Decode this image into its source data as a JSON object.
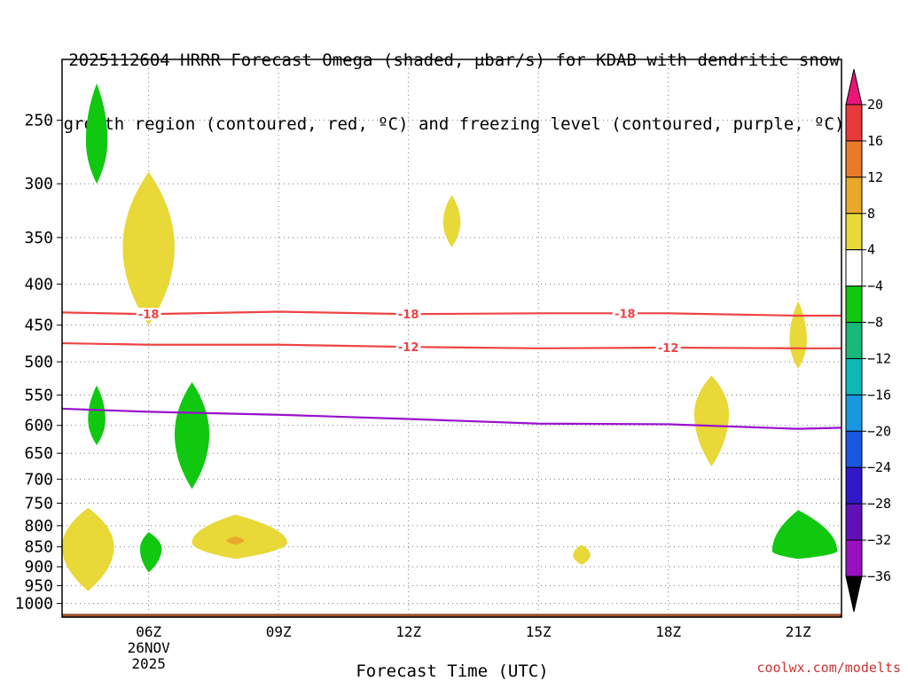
{
  "title_line1": "2025112604 HRRR Forecast Omega (shaded, μbar/s) for KDAB with dendritic snow",
  "title_line2": "growth region (contoured, red, ºC) and freezing level (contoured, purple, ºC)",
  "credit": "coolwx.com/modelts",
  "chart_data": {
    "type": "heatmap",
    "title": "2025112604 HRRR Forecast Omega (shaded, μbar/s) for KDAB with dendritic snow growth region (contoured, red, ºC) and freezing level (contoured, purple, ºC)",
    "xlabel": "Forecast Time (UTC)",
    "ylabel": "",
    "x_range_hours_utc": [
      4.0,
      22.0
    ],
    "y_range_mb": [
      1040,
      210
    ],
    "y_ticks": [
      250,
      300,
      350,
      400,
      450,
      500,
      550,
      600,
      650,
      700,
      750,
      800,
      850,
      900,
      950,
      1000
    ],
    "x_ticks": [
      {
        "hour": 6,
        "label": "06Z",
        "sub1": "26NOV",
        "sub2": "2025"
      },
      {
        "hour": 9,
        "label": "09Z"
      },
      {
        "hour": 12,
        "label": "12Z"
      },
      {
        "hour": 15,
        "label": "15Z"
      },
      {
        "hour": 18,
        "label": "18Z"
      },
      {
        "hour": 21,
        "label": "21Z"
      }
    ],
    "grid": true,
    "colorbar": {
      "levels": [
        20,
        16,
        12,
        8,
        4,
        -4,
        -8,
        -12,
        -16,
        -20,
        -24,
        -28,
        -32,
        -36
      ],
      "colors": [
        "#e8147a",
        "#e83a3a",
        "#e87a28",
        "#e8a82a",
        "#e8d838",
        "#ffffff",
        "#10c810",
        "#18b878",
        "#10b8b8",
        "#1898e0",
        "#1858e0",
        "#3018c8",
        "#6010b8",
        "#9810c0",
        "#a0a0a0",
        "#000000"
      ]
    },
    "omega_regions": [
      {
        "label": "green",
        "value": -6,
        "t": [
          4.8,
          5.05,
          4.55
        ],
        "p": [
          225,
          265,
          300
        ]
      },
      {
        "label": "yellow",
        "value": 6,
        "t": [
          6.0,
          6.6,
          5.4
        ],
        "p": [
          290,
          360,
          450
        ]
      },
      {
        "label": "yellow",
        "value": 6,
        "t": [
          13.0,
          13.2,
          12.8
        ],
        "p": [
          310,
          335,
          360
        ]
      },
      {
        "label": "yellow",
        "value": 6,
        "t": [
          21.0,
          21.2,
          20.8
        ],
        "p": [
          420,
          470,
          510
        ]
      },
      {
        "label": "green",
        "value": -6,
        "t": [
          4.8,
          5.0,
          4.6
        ],
        "p": [
          535,
          590,
          635
        ]
      },
      {
        "label": "green",
        "value": -6,
        "t": [
          7.0,
          7.4,
          6.6
        ],
        "p": [
          530,
          615,
          720
        ]
      },
      {
        "label": "yellow",
        "value": 6,
        "t": [
          19.0,
          19.4,
          18.6
        ],
        "p": [
          520,
          580,
          675
        ]
      },
      {
        "label": "yellow",
        "value": 6,
        "t": [
          4.6,
          5.2,
          4.0
        ],
        "p": [
          760,
          850,
          965
        ]
      },
      {
        "label": "green",
        "value": -6,
        "t": [
          6.0,
          6.3,
          5.8
        ],
        "p": [
          815,
          855,
          915
        ]
      },
      {
        "label": "yellow",
        "value": 6,
        "t": [
          8.0,
          9.2,
          7.0
        ],
        "p": [
          775,
          840,
          880
        ]
      },
      {
        "label": "orange",
        "value": 10,
        "t": [
          8.0,
          8.2,
          7.8
        ],
        "p": [
          825,
          835,
          845
        ]
      },
      {
        "label": "yellow",
        "value": 6,
        "t": [
          16.0,
          16.2,
          15.8
        ],
        "p": [
          845,
          870,
          895
        ]
      },
      {
        "label": "green",
        "value": -6,
        "t": [
          21.0,
          21.9,
          20.4
        ],
        "p": [
          765,
          860,
          880
        ]
      }
    ],
    "contours": [
      {
        "name": "-18",
        "color": "#ee4444",
        "labels_at": [
          6,
          12,
          17
        ],
        "t": [
          4.0,
          6,
          9,
          12,
          15,
          18,
          21,
          22.0
        ],
        "p": [
          434,
          436,
          433,
          436,
          435,
          435,
          438,
          438
        ]
      },
      {
        "name": "-12",
        "color": "#ee4444",
        "labels_at": [
          12,
          18
        ],
        "t": [
          4.0,
          6,
          9,
          12,
          15,
          18,
          21,
          22.0
        ],
        "p": [
          474,
          476,
          476,
          479,
          481,
          480,
          481,
          481
        ]
      },
      {
        "name": "0",
        "color": "#9910cc",
        "labels_at": [],
        "t": [
          4.0,
          6,
          9,
          12,
          15,
          18,
          21,
          22.0
        ],
        "p": [
          572,
          577,
          582,
          589,
          597,
          598,
          606,
          604
        ]
      }
    ],
    "terrain": {
      "color": "#a0522d",
      "p_top": 1030
    }
  }
}
